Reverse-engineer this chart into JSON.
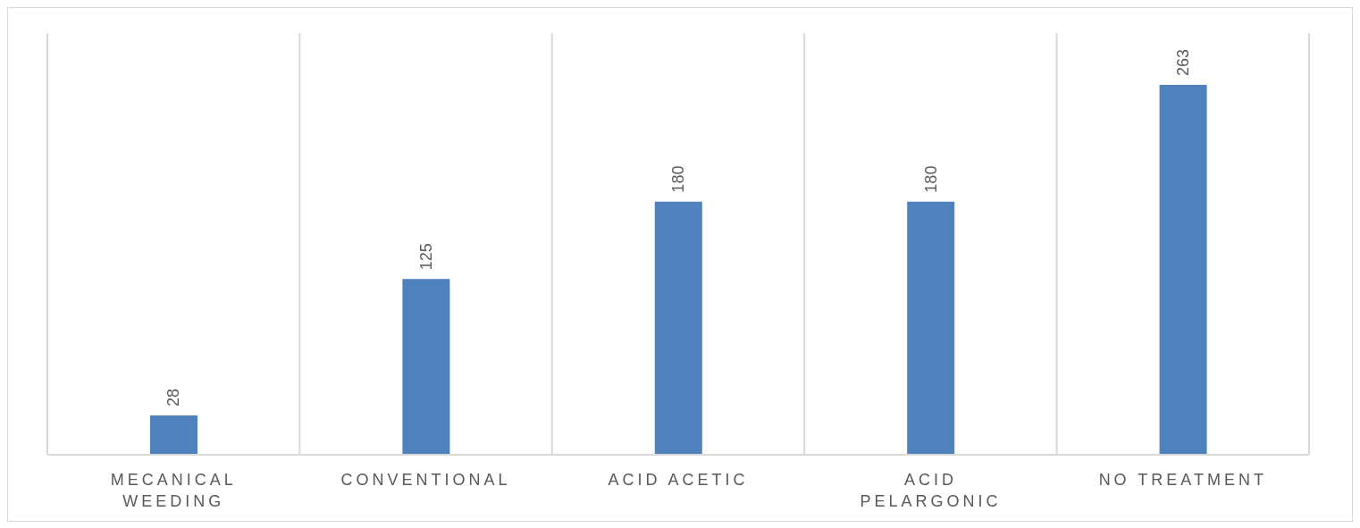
{
  "chart_data": {
    "type": "bar",
    "categories": [
      "MECANICAL WEEDING",
      "CONVENTIONAL",
      "ACID ACETIC",
      "ACID PELARGONIC",
      "NO TREATMENT"
    ],
    "values": [
      28,
      125,
      180,
      180,
      263
    ],
    "color": "#4f81bd",
    "data_labels": true,
    "grid": "x",
    "legend": false
  }
}
